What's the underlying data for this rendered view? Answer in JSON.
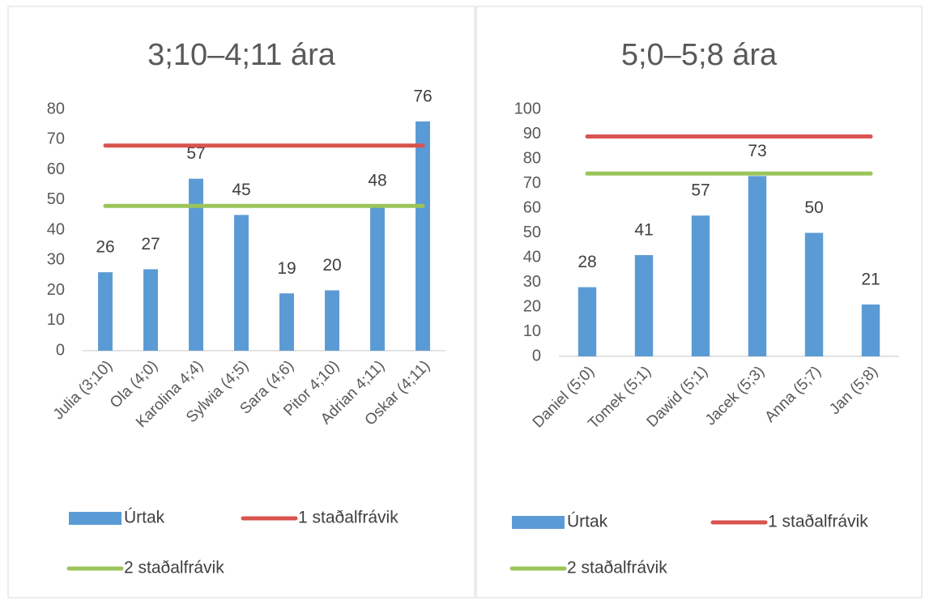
{
  "chart_data": [
    {
      "type": "bar",
      "title": "3;10–4;11 ára",
      "categories": [
        "Julia (3;10)",
        "Ola (4;0)",
        "Karolina 4;4)",
        "Sylwia (4;5)",
        "Sara (4;6)",
        "Pitor 4;10)",
        "Adrian 4;11)",
        "Oskar (4;11)"
      ],
      "series": [
        {
          "name": "Úrtak",
          "type": "bar",
          "color": "#5b9bd5",
          "values": [
            26,
            27,
            57,
            45,
            19,
            20,
            48,
            76
          ]
        },
        {
          "name": "1 staðalfrávik",
          "type": "line",
          "color": "#d9534f",
          "values": [
            68,
            68,
            68,
            68,
            68,
            68,
            68,
            68
          ]
        },
        {
          "name": "2 staðalfrávik",
          "type": "line",
          "color": "#9bc55a",
          "values": [
            48,
            48,
            48,
            48,
            48,
            48,
            48,
            48
          ]
        }
      ],
      "ylim": [
        0,
        80
      ],
      "yticks": [
        0,
        10,
        20,
        30,
        40,
        50,
        60,
        70,
        80
      ],
      "grid": false,
      "legend": "bottom"
    },
    {
      "type": "bar",
      "title": "5;0–5;8 ára",
      "categories": [
        "Daniel (5;0)",
        "Tomek (5;1)",
        "Dawid (5;1)",
        "Jacek (5;3)",
        "Anna (5;7)",
        "Jan (5;8)"
      ],
      "series": [
        {
          "name": "Úrtak",
          "type": "bar",
          "color": "#5b9bd5",
          "values": [
            28,
            41,
            57,
            73,
            50,
            21
          ]
        },
        {
          "name": "1 staðalfrávik",
          "type": "line",
          "color": "#d9534f",
          "values": [
            89,
            89,
            89,
            89,
            89,
            89
          ]
        },
        {
          "name": "2 staðalfrávik",
          "type": "line",
          "color": "#9bc55a",
          "values": [
            74,
            74,
            74,
            74,
            74,
            74
          ]
        }
      ],
      "ylim": [
        0,
        100
      ],
      "yticks": [
        0,
        10,
        20,
        30,
        40,
        50,
        60,
        70,
        80,
        90,
        100
      ],
      "grid": false,
      "legend": "bottom"
    }
  ]
}
